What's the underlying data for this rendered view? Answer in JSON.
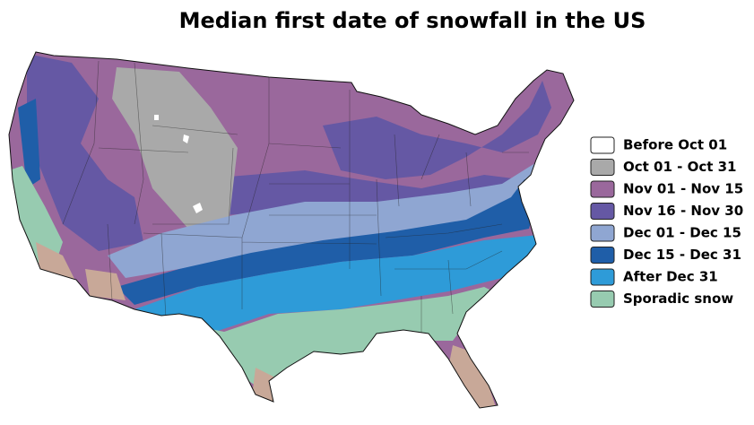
{
  "title": "Median first date of snowfall in the US",
  "legend": [
    {
      "label": "Before Oct 01",
      "color": "#ffffff"
    },
    {
      "label": "Oct 01 - Oct 31",
      "color": "#a9a9a9"
    },
    {
      "label": "Nov 01 - Nov 15",
      "color": "#9a689c"
    },
    {
      "label": "Nov 16 - Nov 30",
      "color": "#6558a4"
    },
    {
      "label": "Dec 01 - Dec 15",
      "color": "#8fa6d2"
    },
    {
      "label": "Dec 15 - Dec 31",
      "color": "#1f5ea8"
    },
    {
      "label": "After Dec 31",
      "color": "#2e9bd8"
    },
    {
      "label": "Sporadic snow",
      "color": "#97cbb0"
    }
  ]
}
